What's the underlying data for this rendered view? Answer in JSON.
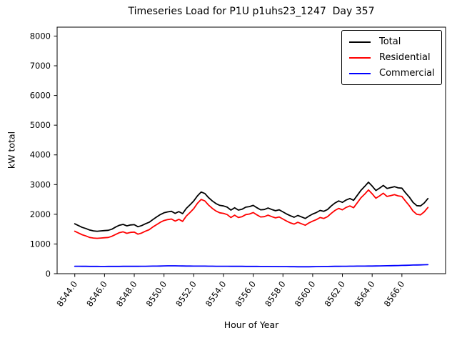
{
  "figure": {
    "background": "#ffffff"
  },
  "chart_data": {
    "type": "line",
    "title": "Timeseries Load for P1U p1uhs23_1247  Day 357",
    "xlabel": "Hour of Year",
    "ylabel": "kW total",
    "xlim": [
      8542.8125,
      8568.9375
    ],
    "ylim": [
      0,
      8300
    ],
    "grid": false,
    "legend_position": "upper right",
    "x_start": 8544.0,
    "x_step": 0.25,
    "x_ticks": [
      {
        "v": 8544,
        "label": "8544.0"
      },
      {
        "v": 8546,
        "label": "8546.0"
      },
      {
        "v": 8548,
        "label": "8548.0"
      },
      {
        "v": 8550,
        "label": "8550.0"
      },
      {
        "v": 8552,
        "label": "8552.0"
      },
      {
        "v": 8554,
        "label": "8554.0"
      },
      {
        "v": 8556,
        "label": "8556.0"
      },
      {
        "v": 8558,
        "label": "8558.0"
      },
      {
        "v": 8560,
        "label": "8560.0"
      },
      {
        "v": 8562,
        "label": "8562.0"
      },
      {
        "v": 8564,
        "label": "8564.0"
      },
      {
        "v": 8566,
        "label": "8566.0"
      }
    ],
    "y_ticks": [
      {
        "v": 0,
        "label": "0"
      },
      {
        "v": 1000,
        "label": "1000"
      },
      {
        "v": 2000,
        "label": "2000"
      },
      {
        "v": 3000,
        "label": "3000"
      },
      {
        "v": 4000,
        "label": "4000"
      },
      {
        "v": 5000,
        "label": "5000"
      },
      {
        "v": 6000,
        "label": "6000"
      },
      {
        "v": 7000,
        "label": "7000"
      },
      {
        "v": 8000,
        "label": "8000"
      }
    ],
    "series": [
      {
        "name": "Total",
        "color": "#000000",
        "values": [
          1680,
          1620,
          1560,
          1520,
          1470,
          1440,
          1430,
          1440,
          1450,
          1460,
          1500,
          1570,
          1630,
          1660,
          1610,
          1640,
          1650,
          1580,
          1620,
          1680,
          1730,
          1820,
          1910,
          1990,
          2050,
          2080,
          2100,
          2030,
          2090,
          2020,
          2200,
          2320,
          2450,
          2620,
          2750,
          2700,
          2560,
          2450,
          2360,
          2300,
          2280,
          2240,
          2140,
          2220,
          2140,
          2170,
          2240,
          2260,
          2300,
          2220,
          2150,
          2160,
          2210,
          2160,
          2120,
          2150,
          2080,
          2010,
          1950,
          1900,
          1960,
          1910,
          1860,
          1940,
          2010,
          2060,
          2130,
          2100,
          2160,
          2280,
          2380,
          2450,
          2400,
          2480,
          2530,
          2470,
          2640,
          2810,
          2940,
          3080,
          2950,
          2800,
          2880,
          2970,
          2870,
          2900,
          2930,
          2890,
          2880,
          2720,
          2580,
          2400,
          2290,
          2280,
          2380,
          2530
        ]
      },
      {
        "name": "Residential",
        "color": "#ff0000",
        "values": [
          1430,
          1370,
          1310,
          1270,
          1220,
          1200,
          1190,
          1200,
          1210,
          1220,
          1260,
          1320,
          1380,
          1410,
          1360,
          1390,
          1400,
          1330,
          1370,
          1430,
          1480,
          1570,
          1650,
          1730,
          1790,
          1820,
          1840,
          1770,
          1830,
          1760,
          1940,
          2060,
          2190,
          2370,
          2500,
          2450,
          2310,
          2200,
          2110,
          2050,
          2030,
          1990,
          1890,
          1970,
          1890,
          1920,
          1990,
          2010,
          2060,
          1980,
          1910,
          1920,
          1970,
          1920,
          1880,
          1910,
          1840,
          1770,
          1710,
          1670,
          1730,
          1680,
          1630,
          1710,
          1770,
          1820,
          1890,
          1860,
          1920,
          2030,
          2130,
          2200,
          2150,
          2230,
          2280,
          2220,
          2390,
          2560,
          2680,
          2820,
          2690,
          2540,
          2620,
          2710,
          2600,
          2630,
          2660,
          2620,
          2600,
          2440,
          2290,
          2110,
          2000,
          1980,
          2080,
          2230
        ]
      },
      {
        "name": "Commercial",
        "color": "#0000ff",
        "values": [
          250,
          250,
          248,
          247,
          246,
          245,
          245,
          244,
          244,
          245,
          245,
          246,
          246,
          247,
          247,
          248,
          248,
          248,
          249,
          250,
          252,
          254,
          256,
          258,
          262,
          264,
          265,
          264,
          262,
          260,
          258,
          257,
          256,
          255,
          255,
          254,
          253,
          252,
          251,
          250,
          250,
          249,
          248,
          248,
          247,
          247,
          246,
          246,
          245,
          245,
          244,
          243,
          242,
          241,
          240,
          239,
          238,
          237,
          236,
          235,
          234,
          234,
          233,
          234,
          236,
          238,
          240,
          242,
          244,
          246,
          247,
          248,
          250,
          251,
          252,
          253,
          254,
          255,
          256,
          257,
          258,
          260,
          262,
          264,
          266,
          269,
          272,
          275,
          278,
          282,
          286,
          290,
          294,
          297,
          300,
          302
        ]
      }
    ]
  }
}
